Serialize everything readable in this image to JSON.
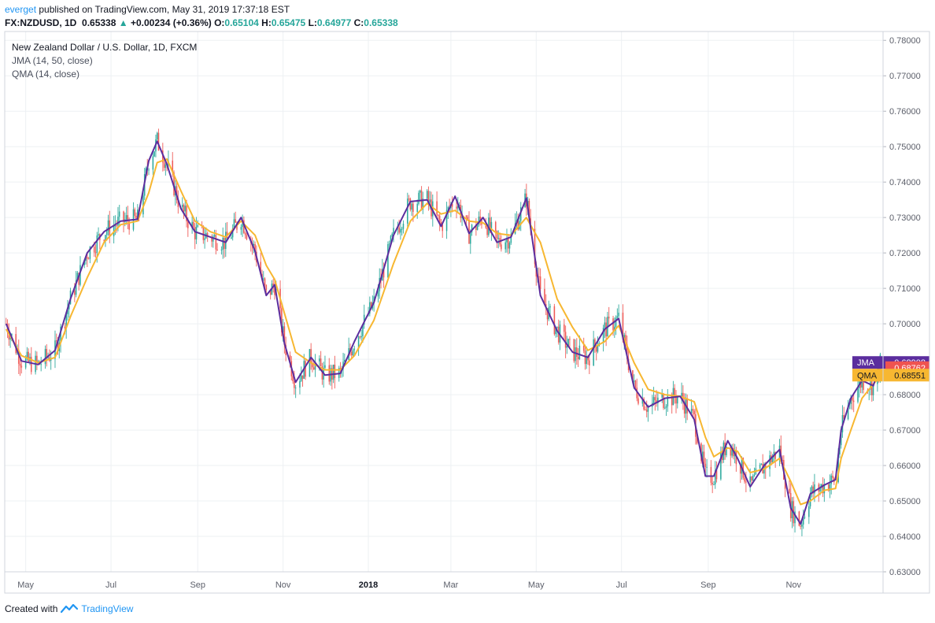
{
  "header": {
    "publisher": "everget",
    "published_text": "published on TradingView.com, May 31, 2019 17:37:18 EST",
    "symbol": "FX:NZDUSD, 1D",
    "last": "0.65338",
    "change_arrow": "▲",
    "change": "+0.00234 (+0.36%)",
    "o_label": "O:",
    "o_value": "0.65104",
    "h_label": "H:",
    "h_value": "0.65475",
    "l_label": "L:",
    "l_value": "0.64977",
    "c_label": "C:",
    "c_value": "0.65338"
  },
  "legend": {
    "title": "New Zealand Dollar / U.S. Dollar, 1D, FXCM",
    "jma": "JMA (14, 50, close)",
    "qma": "QMA (14, close)"
  },
  "footer": {
    "created_with": "Created with",
    "brand": "TradingView"
  },
  "colors": {
    "up": "#26a69a",
    "down": "#ef5350",
    "jma": "#5b2d9e",
    "qma": "#f7b731",
    "last_price": "#ef5350",
    "grid": "#edf0f3",
    "axis_text": "#5d606b"
  },
  "chart_data": {
    "type": "line",
    "title": "New Zealand Dollar / U.S. Dollar, 1D, FXCM",
    "x_ticks": [
      "May",
      "Jul",
      "Sep",
      "Nov",
      "2018",
      "Mar",
      "May",
      "Jul",
      "Sep",
      "Nov"
    ],
    "y_ticks": [
      "0.78000",
      "0.77000",
      "0.76000",
      "0.75000",
      "0.74000",
      "0.73000",
      "0.72000",
      "0.71000",
      "0.70000",
      "0.69000",
      "0.68000",
      "0.67000",
      "0.66000",
      "0.65000",
      "0.64000",
      "0.63000"
    ],
    "ylim": [
      0.63,
      0.7825
    ],
    "grid": true,
    "series": [
      {
        "name": "JMA",
        "color": "#5b2d9e",
        "last_value": "0.68908",
        "points": [
          [
            "2017-04-17",
            0.7
          ],
          [
            "2017-04-28",
            0.6895
          ],
          [
            "2017-05-10",
            0.6885
          ],
          [
            "2017-05-22",
            0.6925
          ],
          [
            "2017-06-02",
            0.707
          ],
          [
            "2017-06-14",
            0.72
          ],
          [
            "2017-06-26",
            0.726
          ],
          [
            "2017-07-08",
            0.729
          ],
          [
            "2017-07-20",
            0.7295
          ],
          [
            "2017-07-28",
            0.746
          ],
          [
            "2017-08-03",
            0.7515
          ],
          [
            "2017-08-10",
            0.745
          ],
          [
            "2017-08-20",
            0.7325
          ],
          [
            "2017-08-30",
            0.726
          ],
          [
            "2017-09-10",
            0.7245
          ],
          [
            "2017-09-21",
            0.723
          ],
          [
            "2017-10-02",
            0.73
          ],
          [
            "2017-10-12",
            0.7205
          ],
          [
            "2017-10-20",
            0.708
          ],
          [
            "2017-10-26",
            0.711
          ],
          [
            "2017-11-02",
            0.6945
          ],
          [
            "2017-11-10",
            0.6835
          ],
          [
            "2017-11-21",
            0.6905
          ],
          [
            "2017-12-01",
            0.6855
          ],
          [
            "2017-12-12",
            0.686
          ],
          [
            "2017-12-22",
            0.695
          ],
          [
            "2018-01-05",
            0.706
          ],
          [
            "2018-01-19",
            0.725
          ],
          [
            "2018-01-31",
            0.7345
          ],
          [
            "2018-02-12",
            0.735
          ],
          [
            "2018-02-22",
            0.7275
          ],
          [
            "2018-03-04",
            0.736
          ],
          [
            "2018-03-14",
            0.7255
          ],
          [
            "2018-03-24",
            0.73
          ],
          [
            "2018-04-03",
            0.723
          ],
          [
            "2018-04-13",
            0.7245
          ],
          [
            "2018-04-24",
            0.7355
          ],
          [
            "2018-05-04",
            0.708
          ],
          [
            "2018-05-16",
            0.698
          ],
          [
            "2018-05-27",
            0.692
          ],
          [
            "2018-06-07",
            0.6905
          ],
          [
            "2018-06-19",
            0.6985
          ],
          [
            "2018-06-29",
            0.7015
          ],
          [
            "2018-07-10",
            0.682
          ],
          [
            "2018-07-20",
            0.6765
          ],
          [
            "2018-08-01",
            0.679
          ],
          [
            "2018-08-12",
            0.6795
          ],
          [
            "2018-08-22",
            0.673
          ],
          [
            "2018-08-30",
            0.657
          ],
          [
            "2018-09-05",
            0.657
          ],
          [
            "2018-09-15",
            0.667
          ],
          [
            "2018-09-22",
            0.662
          ],
          [
            "2018-10-01",
            0.654
          ],
          [
            "2018-10-11",
            0.66
          ],
          [
            "2018-10-22",
            0.6645
          ],
          [
            "2018-10-30",
            0.648
          ],
          [
            "2018-11-06",
            0.6435
          ],
          [
            "2018-11-13",
            0.652
          ],
          [
            "2018-11-23",
            0.6545
          ],
          [
            "2018-12-01",
            0.656
          ],
          [
            "2018-12-05",
            0.67
          ],
          [
            "2018-12-12",
            0.679
          ],
          [
            "2018-12-20",
            0.684
          ],
          [
            "2018-12-28",
            0.6825
          ],
          [
            "2019-01-03",
            0.69
          ]
        ]
      },
      {
        "name": "QMA",
        "color": "#f7b731",
        "last_value": "0.68551",
        "points": [
          [
            "2017-04-17",
            0.6985
          ],
          [
            "2017-04-28",
            0.691
          ],
          [
            "2017-05-10",
            0.689
          ],
          [
            "2017-05-22",
            0.6905
          ],
          [
            "2017-06-02",
            0.702
          ],
          [
            "2017-06-14",
            0.713
          ],
          [
            "2017-06-26",
            0.723
          ],
          [
            "2017-07-08",
            0.728
          ],
          [
            "2017-07-20",
            0.729
          ],
          [
            "2017-07-28",
            0.737
          ],
          [
            "2017-08-03",
            0.7455
          ],
          [
            "2017-08-10",
            0.7465
          ],
          [
            "2017-08-20",
            0.7375
          ],
          [
            "2017-08-30",
            0.729
          ],
          [
            "2017-09-10",
            0.726
          ],
          [
            "2017-09-21",
            0.7245
          ],
          [
            "2017-10-02",
            0.729
          ],
          [
            "2017-10-12",
            0.725
          ],
          [
            "2017-10-20",
            0.7165
          ],
          [
            "2017-10-26",
            0.7125
          ],
          [
            "2017-11-02",
            0.703
          ],
          [
            "2017-11-10",
            0.692
          ],
          [
            "2017-11-21",
            0.689
          ],
          [
            "2017-12-01",
            0.687
          ],
          [
            "2017-12-12",
            0.687
          ],
          [
            "2017-12-22",
            0.691
          ],
          [
            "2018-01-05",
            0.701
          ],
          [
            "2018-01-19",
            0.717
          ],
          [
            "2018-01-31",
            0.729
          ],
          [
            "2018-02-12",
            0.734
          ],
          [
            "2018-02-22",
            0.731
          ],
          [
            "2018-03-04",
            0.732
          ],
          [
            "2018-03-14",
            0.729
          ],
          [
            "2018-03-24",
            0.7285
          ],
          [
            "2018-04-03",
            0.7255
          ],
          [
            "2018-04-13",
            0.725
          ],
          [
            "2018-04-24",
            0.73
          ],
          [
            "2018-05-04",
            0.723
          ],
          [
            "2018-05-16",
            0.707
          ],
          [
            "2018-05-27",
            0.699
          ],
          [
            "2018-06-07",
            0.6925
          ],
          [
            "2018-06-19",
            0.695
          ],
          [
            "2018-06-29",
            0.6995
          ],
          [
            "2018-07-10",
            0.689
          ],
          [
            "2018-07-20",
            0.6815
          ],
          [
            "2018-08-01",
            0.68
          ],
          [
            "2018-08-12",
            0.6795
          ],
          [
            "2018-08-22",
            0.678
          ],
          [
            "2018-08-30",
            0.668
          ],
          [
            "2018-09-05",
            0.6625
          ],
          [
            "2018-09-15",
            0.665
          ],
          [
            "2018-09-22",
            0.664
          ],
          [
            "2018-10-01",
            0.658
          ],
          [
            "2018-10-11",
            0.659
          ],
          [
            "2018-10-22",
            0.662
          ],
          [
            "2018-10-30",
            0.6555
          ],
          [
            "2018-11-06",
            0.649
          ],
          [
            "2018-11-13",
            0.65
          ],
          [
            "2018-11-23",
            0.653
          ],
          [
            "2018-12-01",
            0.6535
          ],
          [
            "2018-12-05",
            0.662
          ],
          [
            "2018-12-12",
            0.67
          ],
          [
            "2018-12-20",
            0.679
          ],
          [
            "2018-12-28",
            0.683
          ],
          [
            "2019-01-03",
            0.6855
          ]
        ]
      }
    ],
    "last_price": "0.68762",
    "candles_note": "daily NZDUSD candlesticks underlay, colors up=#26a69a down=#ef5350"
  }
}
